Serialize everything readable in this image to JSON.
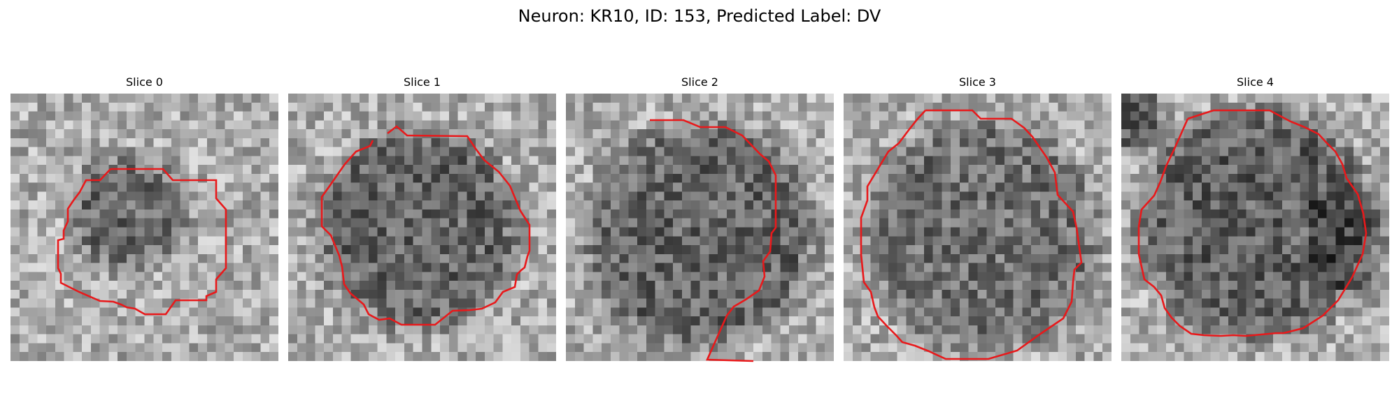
{
  "figure": {
    "title": "Neuron: KR10, ID: 153, Predicted Label: DV"
  },
  "panels": [
    {
      "title": "Slice 0"
    },
    {
      "title": "Slice 1"
    },
    {
      "title": "Slice 2"
    },
    {
      "title": "Slice 3"
    },
    {
      "title": "Slice 4"
    }
  ],
  "colors": {
    "contour": "#e8191b",
    "background": "#ffffff"
  },
  "image": {
    "colormap": "grayscale",
    "grid": "30x30 pixels per slice"
  }
}
